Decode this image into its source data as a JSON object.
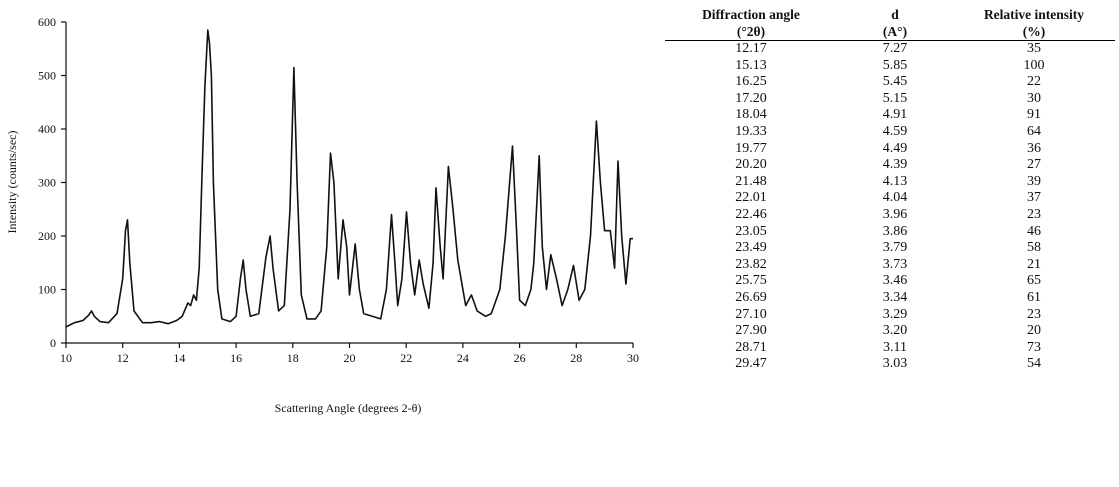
{
  "chart_data": {
    "type": "line",
    "xlabel": "Scattering Angle (degrees 2-θ)",
    "ylabel": "Intensity (counts/sec)",
    "xlim": [
      10,
      30
    ],
    "ylim": [
      0,
      600
    ],
    "xticks": [
      10,
      12,
      14,
      16,
      18,
      20,
      22,
      24,
      26,
      28,
      30
    ],
    "yticks": [
      0,
      100,
      200,
      300,
      400,
      500,
      600
    ],
    "grid": false,
    "line_color": "#111111",
    "series": [
      {
        "x": [
          10.0,
          10.3,
          10.6,
          10.8,
          10.9,
          11.0,
          11.2,
          11.5,
          11.8,
          12.0,
          12.1,
          12.17,
          12.25,
          12.4,
          12.7,
          13.0,
          13.3,
          13.6,
          13.9,
          14.1,
          14.3,
          14.4,
          14.5,
          14.6,
          14.7,
          14.8,
          14.9,
          15.0,
          15.06,
          15.13,
          15.2,
          15.35,
          15.5,
          15.8,
          16.0,
          16.15,
          16.25,
          16.35,
          16.5,
          16.8,
          17.05,
          17.2,
          17.3,
          17.5,
          17.7,
          17.9,
          18.04,
          18.15,
          18.3,
          18.5,
          18.8,
          19.0,
          19.2,
          19.33,
          19.45,
          19.6,
          19.77,
          19.9,
          20.0,
          20.2,
          20.35,
          20.5,
          20.8,
          21.1,
          21.3,
          21.48,
          21.6,
          21.7,
          21.85,
          22.01,
          22.15,
          22.3,
          22.46,
          22.6,
          22.8,
          22.95,
          23.05,
          23.2,
          23.3,
          23.49,
          23.65,
          23.82,
          24.0,
          24.1,
          24.3,
          24.5,
          24.8,
          25.0,
          25.3,
          25.5,
          25.75,
          25.9,
          26.0,
          26.2,
          26.4,
          26.5,
          26.69,
          26.8,
          26.95,
          27.1,
          27.3,
          27.5,
          27.7,
          27.9,
          28.1,
          28.3,
          28.5,
          28.71,
          28.85,
          29.0,
          29.2,
          29.35,
          29.47,
          29.6,
          29.75,
          29.9,
          30.0
        ],
        "y": [
          30,
          38,
          42,
          52,
          60,
          50,
          40,
          38,
          55,
          120,
          210,
          230,
          150,
          60,
          38,
          38,
          40,
          36,
          42,
          50,
          75,
          70,
          90,
          80,
          140,
          320,
          480,
          585,
          560,
          500,
          300,
          100,
          45,
          40,
          50,
          120,
          155,
          100,
          50,
          55,
          160,
          200,
          140,
          60,
          70,
          250,
          515,
          300,
          90,
          45,
          45,
          60,
          180,
          355,
          300,
          120,
          230,
          180,
          90,
          185,
          100,
          55,
          50,
          45,
          100,
          240,
          150,
          70,
          120,
          245,
          150,
          90,
          155,
          110,
          65,
          150,
          290,
          180,
          120,
          330,
          250,
          155,
          100,
          70,
          90,
          60,
          50,
          55,
          100,
          200,
          368,
          200,
          80,
          70,
          100,
          150,
          350,
          180,
          100,
          165,
          120,
          70,
          100,
          145,
          80,
          100,
          200,
          415,
          300,
          210,
          210,
          140,
          340,
          200,
          110,
          195,
          195
        ]
      }
    ]
  },
  "table": {
    "headers": [
      {
        "line1": "Diffraction angle",
        "line2": "(°2θ)"
      },
      {
        "line1": "d",
        "line2": "(A°)"
      },
      {
        "line1": "Relative intensity",
        "line2": "(%)"
      }
    ],
    "rows": [
      [
        "12.17",
        "7.27",
        "35"
      ],
      [
        "15.13",
        "5.85",
        "100"
      ],
      [
        "16.25",
        "5.45",
        "22"
      ],
      [
        "17.20",
        "5.15",
        "30"
      ],
      [
        "18.04",
        "4.91",
        "91"
      ],
      [
        "19.33",
        "4.59",
        "64"
      ],
      [
        "19.77",
        "4.49",
        "36"
      ],
      [
        "20.20",
        "4.39",
        "27"
      ],
      [
        "21.48",
        "4.13",
        "39"
      ],
      [
        "22.01",
        "4.04",
        "37"
      ],
      [
        "22.46",
        "3.96",
        "23"
      ],
      [
        "23.05",
        "3.86",
        "46"
      ],
      [
        "23.49",
        "3.79",
        "58"
      ],
      [
        "23.82",
        "3.73",
        "21"
      ],
      [
        "25.75",
        "3.46",
        "65"
      ],
      [
        "26.69",
        "3.34",
        "61"
      ],
      [
        "27.10",
        "3.29",
        "23"
      ],
      [
        "27.90",
        "3.20",
        "20"
      ],
      [
        "28.71",
        "3.11",
        "73"
      ],
      [
        "29.47",
        "3.03",
        "54"
      ]
    ]
  }
}
